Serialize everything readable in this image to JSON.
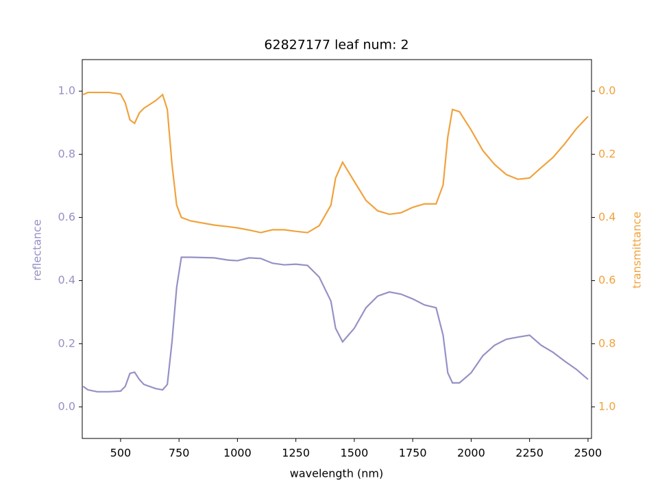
{
  "chart_data": {
    "type": "line",
    "title": "62827177 leaf num: 2",
    "x_label": "wavelength (nm)",
    "y_label": "reflectance",
    "y2_label": "transmittance",
    "x": [
      340,
      360,
      400,
      450,
      500,
      520,
      540,
      560,
      580,
      600,
      650,
      680,
      700,
      720,
      740,
      760,
      800,
      900,
      960,
      1000,
      1050,
      1100,
      1150,
      1200,
      1250,
      1300,
      1350,
      1400,
      1420,
      1450,
      1500,
      1550,
      1600,
      1650,
      1700,
      1750,
      1800,
      1850,
      1880,
      1900,
      1920,
      1950,
      2000,
      2050,
      2100,
      2150,
      2200,
      2250,
      2300,
      2350,
      2400,
      2450,
      2500
    ],
    "series": [
      {
        "color": "#9491c5",
        "values": [
          0.065,
          0.054,
          0.048,
          0.048,
          0.05,
          0.065,
          0.106,
          0.11,
          0.087,
          0.071,
          0.058,
          0.054,
          0.071,
          0.206,
          0.379,
          0.474,
          0.474,
          0.472,
          0.465,
          0.463,
          0.472,
          0.47,
          0.455,
          0.45,
          0.452,
          0.448,
          0.411,
          0.335,
          0.249,
          0.206,
          0.249,
          0.314,
          0.351,
          0.364,
          0.357,
          0.342,
          0.323,
          0.314,
          0.227,
          0.108,
          0.076,
          0.076,
          0.108,
          0.162,
          0.195,
          0.214,
          0.221,
          0.227,
          0.195,
          0.173,
          0.145,
          0.119,
          0.087
        ]
      },
      {
        "color": "#f0a23c",
        "axis": "y2",
        "values": [
          0.011,
          0.004,
          0.004,
          0.004,
          0.009,
          0.037,
          0.091,
          0.102,
          0.069,
          0.054,
          0.03,
          0.011,
          0.058,
          0.232,
          0.361,
          0.4,
          0.411,
          0.424,
          0.429,
          0.433,
          0.44,
          0.448,
          0.439,
          0.439,
          0.444,
          0.448,
          0.426,
          0.361,
          0.275,
          0.225,
          0.286,
          0.346,
          0.379,
          0.39,
          0.385,
          0.368,
          0.357,
          0.357,
          0.297,
          0.145,
          0.058,
          0.065,
          0.123,
          0.188,
          0.232,
          0.264,
          0.279,
          0.275,
          0.242,
          0.21,
          0.167,
          0.119,
          0.08
        ]
      }
    ],
    "xlim": [
      336,
      2515
    ],
    "xticks": [
      500,
      750,
      1000,
      1250,
      1500,
      1750,
      2000,
      2250,
      2500
    ],
    "ylim": [
      -0.1,
      1.1
    ],
    "yticks": [
      {
        "value": 0,
        "label": "0.0"
      },
      0.2,
      0.4,
      0.6,
      0.8,
      {
        "value": 1,
        "label": "1.0"
      }
    ],
    "y2lim": [
      1.1,
      -0.1
    ],
    "y2ticks": [
      {
        "value": 0,
        "label": "0.0"
      },
      0.2,
      0.4,
      0.6,
      0.8,
      {
        "value": 1,
        "label": "1.0"
      }
    ]
  }
}
